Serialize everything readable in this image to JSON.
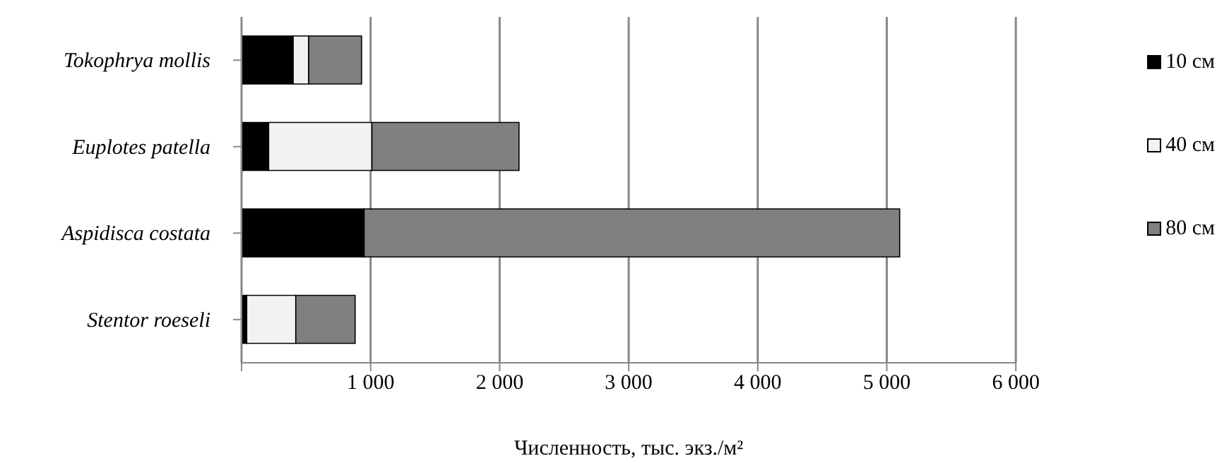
{
  "chart_data": {
    "type": "bar",
    "orientation": "horizontal",
    "stacked": true,
    "categories": [
      "Tokophrya mollis",
      "Euplotes patella",
      "Aspidisca costata",
      "Stentor roeseli"
    ],
    "series": [
      {
        "name": "10 см",
        "color": "#000000",
        "values": [
          400,
          210,
          950,
          40
        ]
      },
      {
        "name": "40 см",
        "color": "#f2f2f2",
        "values": [
          120,
          800,
          0,
          380
        ]
      },
      {
        "name": "80 см",
        "color": "#808080",
        "values": [
          410,
          1140,
          4150,
          460
        ]
      }
    ],
    "xlim": [
      0,
      6000
    ],
    "xticks": [
      {
        "value": 0,
        "label": null
      },
      {
        "value": 1000,
        "label": "1 000"
      },
      {
        "value": 2000,
        "label": "2 000"
      },
      {
        "value": 3000,
        "label": "3 000"
      },
      {
        "value": 4000,
        "label": "4 000"
      },
      {
        "value": 5000,
        "label": "5 000"
      },
      {
        "value": 6000,
        "label": "6 000"
      }
    ],
    "xlabel": "Численность, тыс. экз./м²",
    "grid": "x",
    "legend": "right"
  }
}
